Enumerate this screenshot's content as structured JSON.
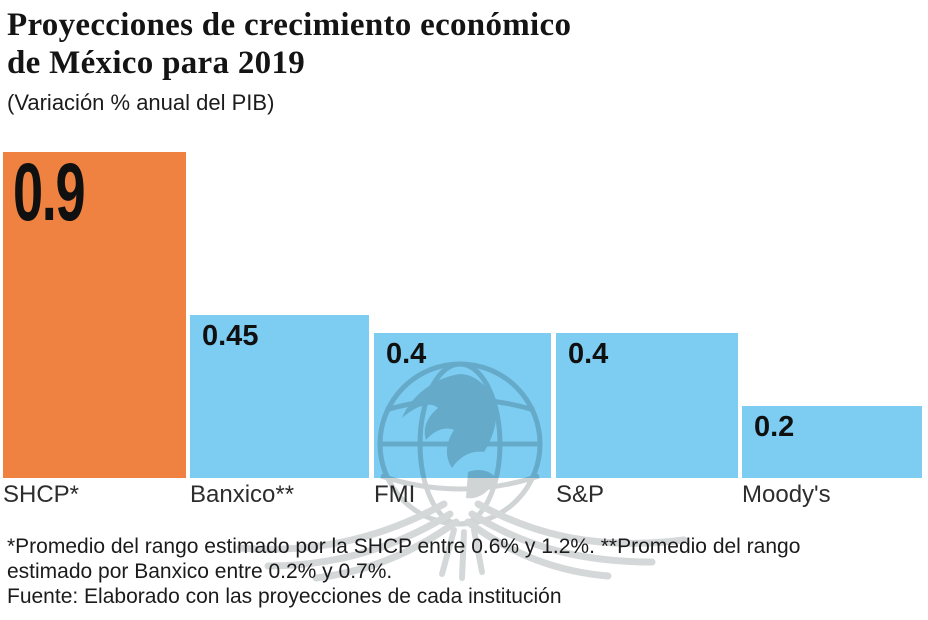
{
  "header": {
    "title_line1": "Proyecciones de crecimiento económico",
    "title_line2": "de México para 2019",
    "subtitle": "(Variación % anual del PIB)"
  },
  "chart_data": {
    "type": "bar",
    "orientation": "vertical",
    "categories": [
      "SHCP*",
      "Banxico**",
      "FMI",
      "S&P",
      "Moody's"
    ],
    "values": [
      0.9,
      0.45,
      0.4,
      0.4,
      0.2
    ],
    "value_labels": [
      "0.9",
      "0.45",
      "0.4",
      "0.4",
      "0.2"
    ],
    "bar_colors": [
      "#EF8240",
      "#7DCDF2",
      "#7DCDF2",
      "#7DCDF2",
      "#7DCDF2"
    ],
    "highlight_color": "#EF8240",
    "default_color": "#7DCDF2",
    "title": "Proyecciones de crecimiento económico de México para 2019",
    "subtitle": "(Variación % anual del PIB)",
    "ylim": [
      0,
      0.9
    ],
    "grid": false,
    "legend": false,
    "value_label_position": "inside-top-left",
    "category_label_position": "below-bar-left"
  },
  "watermark": {
    "icon": "globe-eagle-watermark-icon",
    "color": "#9aa1a5"
  },
  "footnotes": {
    "note1": "*Promedio del rango estimado por la SHCP entre 0.6% y 1.2%. **Promedio del rango estimado por Banxico entre 0.2% y 0.7%.",
    "source": "Fuente: Elaborado con las proyecciones de cada institución"
  }
}
